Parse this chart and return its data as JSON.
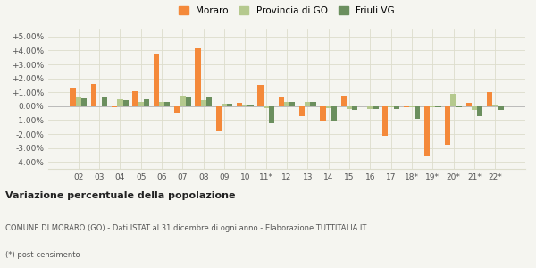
{
  "categories": [
    "02",
    "03",
    "04",
    "05",
    "06",
    "07",
    "08",
    "09",
    "10",
    "11*",
    "12",
    "13",
    "14",
    "15",
    "16",
    "17",
    "18*",
    "19*",
    "20*",
    "21*",
    "22*"
  ],
  "moraro": [
    0.013,
    0.016,
    -0.001,
    0.011,
    0.0375,
    -0.0045,
    0.0415,
    -0.018,
    0.0025,
    0.015,
    0.006,
    -0.007,
    -0.0105,
    0.007,
    0.0,
    -0.021,
    -0.001,
    -0.036,
    -0.028,
    0.0025,
    0.01
  ],
  "provincia": [
    0.0065,
    0.0,
    0.005,
    0.003,
    0.003,
    0.0075,
    0.0045,
    0.002,
    0.001,
    -0.0015,
    0.003,
    0.003,
    -0.0015,
    -0.002,
    -0.002,
    -0.001,
    -0.001,
    -0.0005,
    0.009,
    -0.0025,
    0.001
  ],
  "friuli": [
    0.0055,
    0.006,
    0.0045,
    0.005,
    0.003,
    0.006,
    0.0065,
    0.0015,
    0.0005,
    -0.012,
    0.003,
    0.003,
    -0.011,
    -0.003,
    -0.002,
    -0.002,
    -0.009,
    -0.001,
    -0.001,
    -0.007,
    -0.0025
  ],
  "color_moraro": "#f4893a",
  "color_provincia": "#b5c98e",
  "color_friuli": "#6b8f5e",
  "title": "Variazione percentuale della popolazione",
  "subtitle": "COMUNE DI MORARO (GO) - Dati ISTAT al 31 dicembre di ogni anno - Elaborazione TUTTITALIA.IT",
  "footnote": "(*) post-censimento",
  "ylim_min": -0.045,
  "ylim_max": 0.055,
  "yticks": [
    -0.04,
    -0.03,
    -0.02,
    -0.01,
    0.0,
    0.01,
    0.02,
    0.03,
    0.04,
    0.05
  ],
  "background_color": "#f5f5f0",
  "grid_color": "#ddddcc"
}
